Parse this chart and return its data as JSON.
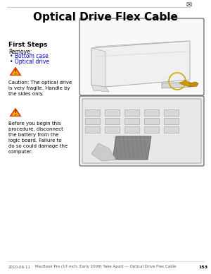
{
  "title": "Optical Drive Flex Cable",
  "bg_color": "#ffffff",
  "top_line_color": "#cccccc",
  "header_icon_color": "#333333",
  "first_steps_label": "First Steps",
  "remove_label": "Remove:",
  "bullets": [
    "Bottom case",
    "Optical drive"
  ],
  "caution1_text": "Caution: The optical drive\nis very fragile. Handle by\nthe sides only.",
  "caution2_text": "Before you begin this\nprocedure, disconnect\nthe battery from the\nlogic board. Failure to\ndo so could damage the\ncomputer.",
  "footer_left": "2010-06-11",
  "footer_center": "MacBook Pro (17-inch, Early 2009) Take Apart — Optical Drive Flex Cable",
  "footer_page": "153",
  "link_color": "#0000cc",
  "text_color": "#000000",
  "box_border_color": "#555555",
  "caution_triangle_outer": "#cc3300",
  "caution_triangle_inner": "#ffaa00",
  "caution_triangle_symbol": "#cc3300",
  "circle_color": "#ccaa00",
  "flex_cable_color": "#cc9900"
}
